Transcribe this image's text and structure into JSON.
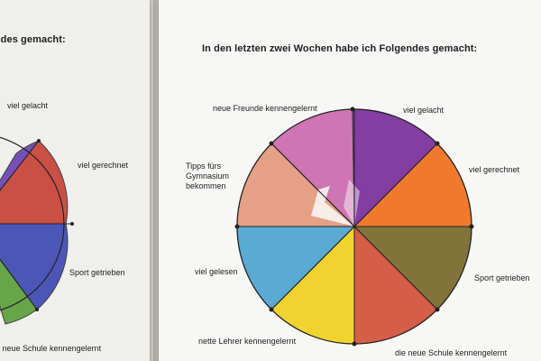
{
  "scene": {
    "colors": {
      "paper": "#f7f7f5",
      "background": "#c7c4bc",
      "ink": "#222222",
      "pink": "#cc6bb0",
      "purple": "#7b2f9d",
      "orange": "#f0701e",
      "olive": "#7a6b2b",
      "red": "#d2533b",
      "yellow": "#f1d121",
      "blue": "#4ea6d2",
      "peach": "#e49a7d",
      "left_purple": "#6b46b3",
      "left_red": "#c8453a",
      "left_blue": "#3f4bb4",
      "left_green": "#5ca03c"
    }
  },
  "left_sheet": {
    "title": "Folgendes gemacht:",
    "labels": {
      "laughed": "viel gelacht",
      "calculated": "viel gerechnet",
      "sport": "Sport getrieben",
      "school": "e neue Schule kennengelernt"
    }
  },
  "right_sheet": {
    "title": "In den letzten zwei Wochen habe ich Folgendes gemacht:",
    "labels": {
      "friends": "neue Freunde kennengelernt",
      "laughed": "viel gelacht",
      "calculated": "viel gerechnet",
      "tips": "Tipps fürs Gymnasium bekommen",
      "sport": "Sport getrieben",
      "read": "viel gelesen",
      "teachers": "nette Lehrer kennengelernt",
      "school": "die neue Schule kennengelernt"
    }
  }
}
